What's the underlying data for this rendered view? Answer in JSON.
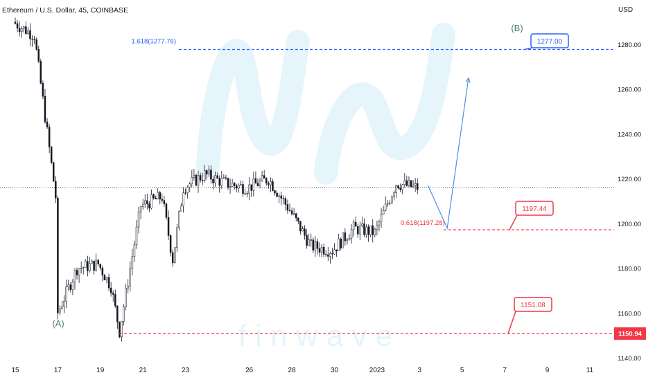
{
  "header": {
    "title": "Ethereum / U.S. Dollar, 45, COINBASE",
    "currency": "USD"
  },
  "watermark": {
    "text": "f i n w a v e"
  },
  "colors": {
    "candle": "#131722",
    "fib_blue": "#2962ff",
    "target_red": "#f23645",
    "projection": "#4a90e2",
    "wave_label": "#4b7f6a",
    "watermark": "#e6f4fb",
    "axis_text": "#131722",
    "crosshair": "#555555"
  },
  "chart_data": {
    "type": "line",
    "title": "Ethereum / U.S. Dollar, 45, COINBASE",
    "xlabel": "",
    "ylabel": "USD",
    "ylim": [
      1136,
      1298
    ],
    "grid": false,
    "x_ticks": [
      "15",
      "17",
      "19",
      "21",
      "23",
      "26",
      "28",
      "30",
      "2023",
      "3",
      "5",
      "7",
      "9",
      "11"
    ],
    "y_ticks": [
      "1140.00",
      "1160.00",
      "1180.00",
      "1200.00",
      "1220.00",
      "1240.00",
      "1260.00",
      "1280.00"
    ],
    "series": [
      {
        "x": [
          "15",
          "16",
          "17",
          "17",
          "18",
          "19",
          "19.6",
          "20",
          "21",
          "22",
          "22.5",
          "23",
          "24",
          "25",
          "26",
          "27",
          "28",
          "29",
          "30",
          "31",
          "2023",
          "2",
          "3"
        ],
        "values": [
          1290,
          1284,
          1212,
          1158,
          1180,
          1182,
          1172,
          1152,
          1208,
          1212,
          1184,
          1216,
          1222,
          1218,
          1216,
          1220,
          1206,
          1190,
          1188,
          1198,
          1196,
          1218,
          1216
        ]
      }
    ],
    "projection_path": [
      {
        "x": "3.4",
        "y": 1217
      },
      {
        "x": "4.3",
        "y": 1198
      },
      {
        "x": "5.3",
        "y": 1265
      }
    ],
    "levels": [
      {
        "value": 1277.76,
        "label": "1.618(1277.76)",
        "tag": "1277.00"
      },
      {
        "value": 1197.28,
        "label": "0.618(1197.28)",
        "tag": "1197.44"
      },
      {
        "value": 1150.94,
        "label": "",
        "tag": "1151.08",
        "axis_badge": "1150.94"
      }
    ],
    "crosshair_value": 1216,
    "annotations": [
      "(A)",
      "(B)"
    ]
  }
}
